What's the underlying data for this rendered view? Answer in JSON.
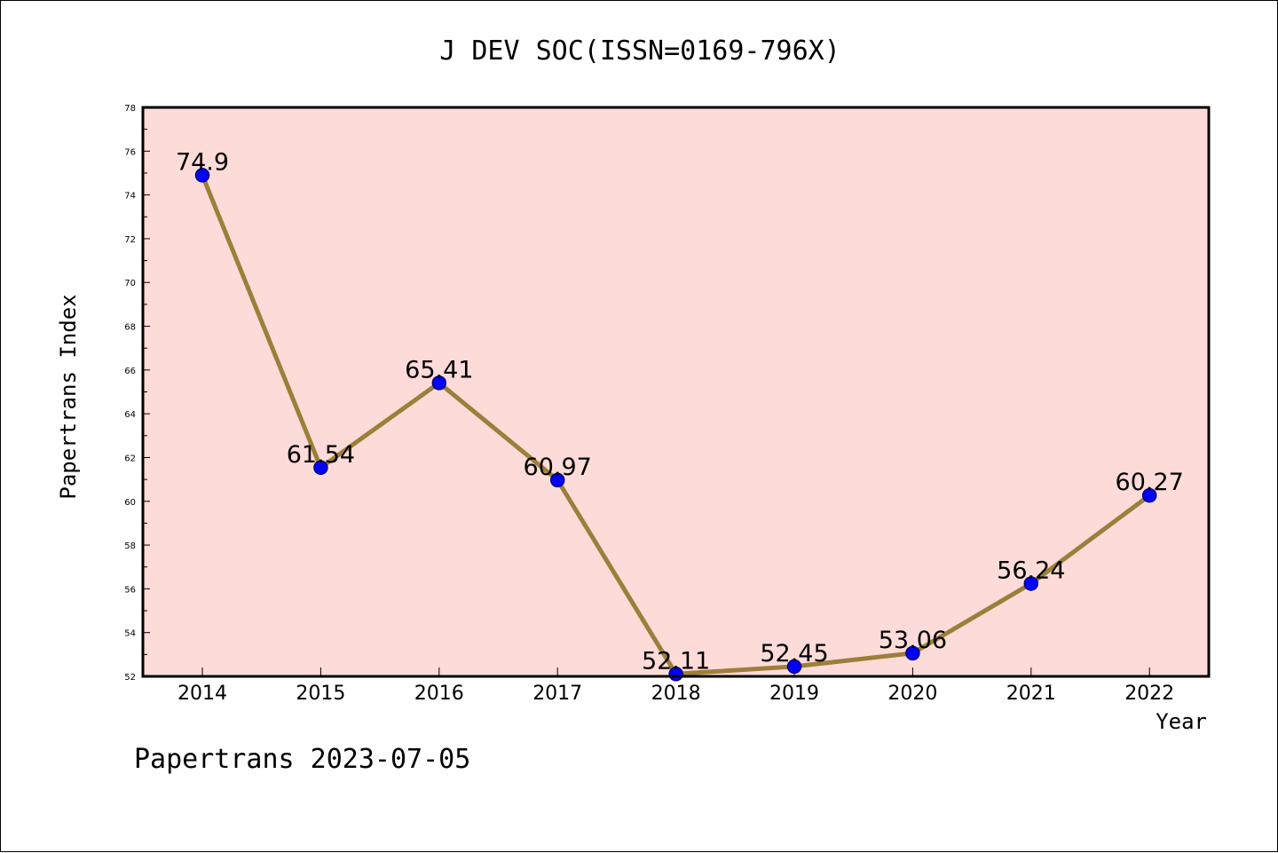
{
  "chart_data": {
    "type": "line",
    "title": "J DEV SOC(ISSN=0169-796X)",
    "xlabel": "Year",
    "ylabel": "Papertrans Index",
    "footer": "Papertrans 2023-07-05",
    "x": [
      "2014",
      "2015",
      "2016",
      "2017",
      "2018",
      "2019",
      "2020",
      "2021",
      "2022"
    ],
    "series": [
      {
        "values": [
          74.9,
          61.54,
          65.41,
          60.97,
          52.11,
          52.45,
          53.06,
          56.24,
          60.27
        ],
        "labels": [
          "74.9",
          "61.54",
          "65.41",
          "60.97",
          "52.11",
          "52.45",
          "53.06",
          "56.24",
          "60.27"
        ]
      }
    ],
    "ylim": [
      52,
      78
    ],
    "yticks": [
      "52",
      "54",
      "56",
      "58",
      "60",
      "62",
      "64",
      "66",
      "68",
      "70",
      "72",
      "74",
      "76",
      "78"
    ],
    "grid": false,
    "colors": {
      "plot_background": "#fddbd8",
      "line": "#9b7f3a",
      "marker": "#0000ff",
      "marker_edge": "#000080"
    }
  }
}
